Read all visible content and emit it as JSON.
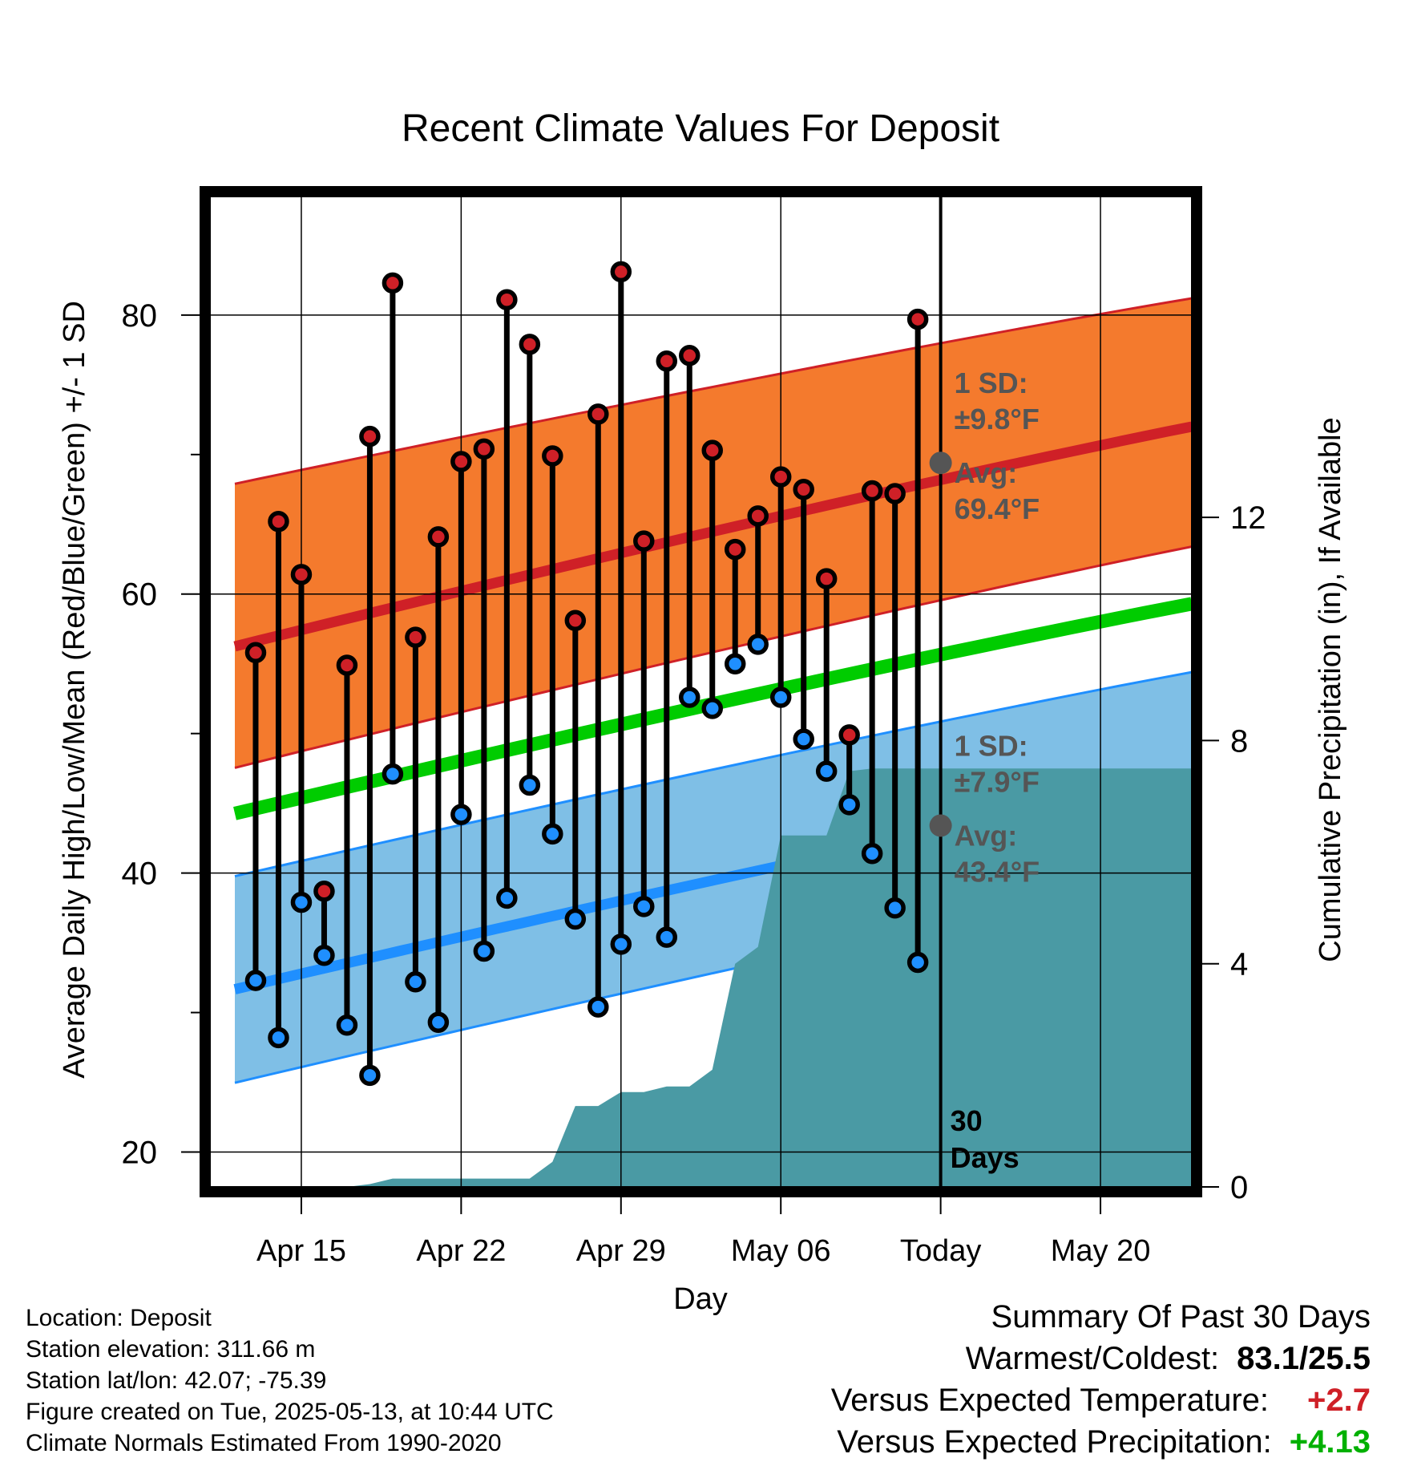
{
  "chart_data": {
    "type": "line",
    "title": "Recent Climate Values For Deposit",
    "xlabel": "Day",
    "ylabel": "Average Daily High/Low/Mean (Red/Blue/Green) +/- 1 SD",
    "y2label": "Cumulative Precipitation (in), If Available",
    "ylim": [
      17.5,
      88.5
    ],
    "y2lim": [
      0,
      17.75
    ],
    "y_ticks": [
      20,
      40,
      60,
      80
    ],
    "y2_ticks": [
      0,
      4,
      8,
      12
    ],
    "x_range": [
      "2025-04-11",
      "2025-05-24"
    ],
    "x_ticks": [
      {
        "date": "2025-04-15",
        "label": "Apr 15"
      },
      {
        "date": "2025-04-22",
        "label": "Apr 22"
      },
      {
        "date": "2025-04-29",
        "label": "Apr 29"
      },
      {
        "date": "2025-05-06",
        "label": "May 06"
      },
      {
        "date": "2025-05-13",
        "label": "Today"
      },
      {
        "date": "2025-05-20",
        "label": "May 20"
      }
    ],
    "grid": true,
    "today": "2025-05-13",
    "days_label": "30 Days",
    "normals": {
      "x": [
        "2025-04-13",
        "2025-05-23"
      ],
      "high_mean": [
        56.6,
        72.0
      ],
      "high_upper": [
        68.2,
        81.2
      ],
      "high_lower": [
        47.9,
        63.4
      ],
      "mean": [
        44.6,
        59.3
      ],
      "low_mean": [
        32.0,
        46.6
      ],
      "low_upper": [
        40.1,
        54.4
      ],
      "low_lower": [
        25.3,
        40.0
      ]
    },
    "series": [
      {
        "name": "High",
        "x": [
          "2025-04-13",
          "2025-04-14",
          "2025-04-15",
          "2025-04-16",
          "2025-04-17",
          "2025-04-18",
          "2025-04-19",
          "2025-04-20",
          "2025-04-21",
          "2025-04-22",
          "2025-04-23",
          "2025-04-24",
          "2025-04-25",
          "2025-04-26",
          "2025-04-27",
          "2025-04-28",
          "2025-04-29",
          "2025-04-30",
          "2025-05-01",
          "2025-05-02",
          "2025-05-03",
          "2025-05-04",
          "2025-05-05",
          "2025-05-06",
          "2025-05-07",
          "2025-05-08",
          "2025-05-09",
          "2025-05-10",
          "2025-05-11",
          "2025-05-12"
        ],
        "values": [
          55.8,
          65.2,
          61.4,
          38.7,
          54.9,
          71.3,
          82.3,
          56.9,
          64.1,
          69.5,
          70.4,
          81.1,
          77.9,
          69.9,
          58.1,
          72.9,
          83.1,
          63.8,
          76.7,
          77.1,
          70.3,
          63.2,
          65.6,
          68.4,
          67.5,
          61.1,
          49.9,
          67.4,
          67.2,
          79.7
        ]
      },
      {
        "name": "Low",
        "x": [
          "2025-04-13",
          "2025-04-14",
          "2025-04-15",
          "2025-04-16",
          "2025-04-17",
          "2025-04-18",
          "2025-04-19",
          "2025-04-20",
          "2025-04-21",
          "2025-04-22",
          "2025-04-23",
          "2025-04-24",
          "2025-04-25",
          "2025-04-26",
          "2025-04-27",
          "2025-04-28",
          "2025-04-29",
          "2025-04-30",
          "2025-05-01",
          "2025-05-02",
          "2025-05-03",
          "2025-05-04",
          "2025-05-05",
          "2025-05-06",
          "2025-05-07",
          "2025-05-08",
          "2025-05-09",
          "2025-05-10",
          "2025-05-11",
          "2025-05-12"
        ],
        "values": [
          32.3,
          28.2,
          37.9,
          34.1,
          29.1,
          25.5,
          47.1,
          32.2,
          29.3,
          44.2,
          34.4,
          38.2,
          46.3,
          42.8,
          36.7,
          30.4,
          34.9,
          37.6,
          35.4,
          52.6,
          51.8,
          55.0,
          56.4,
          52.6,
          49.6,
          47.3,
          44.9,
          41.4,
          37.5,
          33.6
        ]
      },
      {
        "name": "Cumulative Precipitation",
        "x": [
          "2025-04-11",
          "2025-04-17",
          "2025-04-18",
          "2025-04-19",
          "2025-04-20",
          "2025-04-25",
          "2025-04-26",
          "2025-04-27",
          "2025-04-28",
          "2025-04-29",
          "2025-04-30",
          "2025-05-01",
          "2025-05-02",
          "2025-05-03",
          "2025-05-04",
          "2025-05-05",
          "2025-05-06",
          "2025-05-07",
          "2025-05-08",
          "2025-05-09",
          "2025-05-10",
          "2025-05-24"
        ],
        "values": [
          0,
          0,
          0.05,
          0.15,
          0.15,
          0.15,
          0.45,
          1.45,
          1.45,
          1.7,
          1.7,
          1.8,
          1.8,
          2.1,
          4.0,
          4.3,
          6.3,
          6.3,
          6.3,
          7.45,
          7.5,
          7.5
        ]
      }
    ],
    "annotations": {
      "high_sd_label": "1 SD:",
      "high_sd_value": "±9.8°F",
      "high_avg_label": "Avg:",
      "high_avg_value": "69.4°F",
      "low_sd_label": "1 SD:",
      "low_sd_value": "±7.9°F",
      "low_avg_label": "Avg:",
      "low_avg_value": "43.4°F"
    },
    "colors": {
      "high_band": "#f47a2d",
      "high_line": "#cf2027",
      "mean_line": "#00cc00",
      "low_band": "#7fbfe6",
      "low_line": "#1f8fff",
      "precip": "#4a9aa4",
      "annotation": "#555555"
    }
  },
  "info": {
    "location": "Location: Deposit",
    "elevation": "Station elevation: 311.66 m",
    "latlon": "Station lat/lon: 42.07; -75.39",
    "created": "Figure created on Tue, 2025-05-13, at 10:44 UTC",
    "normals": "Climate Normals Estimated From 1990-2020"
  },
  "summary": {
    "title": "Summary Of Past 30 Days",
    "warm_cold_label": "Warmest/Coldest:",
    "warm_cold_value": "83.1/25.5",
    "temp_label": "Versus Expected Temperature:",
    "temp_value": "+2.7",
    "temp_color": "#cf2027",
    "precip_label": "Versus Expected Precipitation:",
    "precip_value": "+4.13",
    "precip_color": "#00b000"
  }
}
